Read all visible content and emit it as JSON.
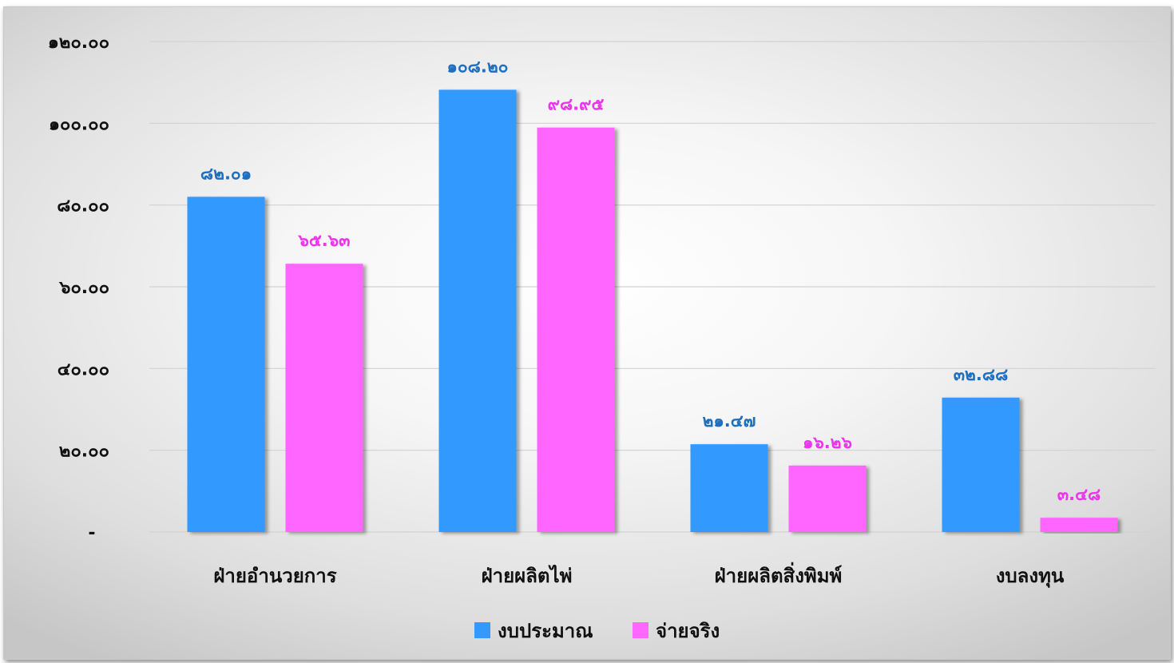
{
  "chart_data": {
    "type": "bar",
    "title": "",
    "xlabel": "",
    "ylabel": "",
    "categories": [
      "ฝ่ายอำนวยการ",
      "ฝ่ายผลิตไพ่",
      "ฝ่ายผลิตสิ่งพิมพ์",
      "งบลงทุน"
    ],
    "series": [
      {
        "name": "งบประมาณ",
        "color": "#3399ff",
        "label_color": "#1f6fbf",
        "values": [
          82.01,
          108.2,
          21.47,
          32.88
        ],
        "labels": [
          "๘๒.๐๑",
          "๑๐๘.๒๐",
          "๒๑.๔๗",
          "๓๒.๘๘"
        ]
      },
      {
        "name": "จ่ายจริง",
        "color": "#ff66ff",
        "label_color": "#ee33ee",
        "values": [
          65.63,
          98.95,
          16.26,
          3.48
        ],
        "labels": [
          "๖๕.๖๓",
          "๙๘.๙๕",
          "๑๖.๒๖",
          "๓.๔๘"
        ]
      }
    ],
    "ylim": [
      0,
      120
    ],
    "yticks": [
      0,
      20,
      40,
      60,
      80,
      100,
      120
    ],
    "ytick_labels": [
      "-",
      "๒๐.๐๐",
      "๔๐.๐๐",
      "๖๐.๐๐",
      "๘๐.๐๐",
      "๑๐๐.๐๐",
      "๑๒๐.๐๐"
    ],
    "grid": true,
    "legend": "bottom-center"
  }
}
